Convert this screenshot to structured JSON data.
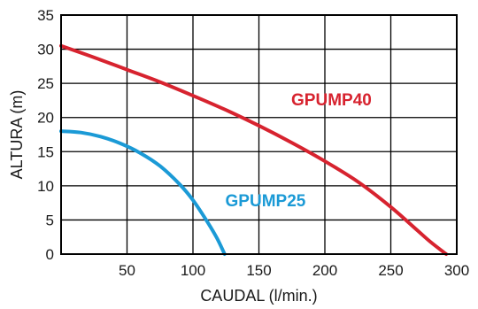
{
  "chart_data": {
    "type": "line",
    "xlabel": "CAUDAL (l/min.)",
    "ylabel": "ALTURA (m)",
    "xlim": [
      0,
      300
    ],
    "ylim": [
      0,
      35
    ],
    "x_ticks": [
      50,
      100,
      150,
      200,
      250,
      300
    ],
    "y_ticks": [
      0,
      5,
      10,
      15,
      20,
      25,
      30,
      35
    ],
    "grid": true,
    "legend": "inline labels",
    "series": [
      {
        "name": "GPUMP40",
        "color": "#d7232f",
        "x": [
          0,
          25,
          50,
          75,
          100,
          125,
          150,
          175,
          200,
          225,
          250,
          270,
          280,
          292
        ],
        "y": [
          30.5,
          28.8,
          27.0,
          25.2,
          23.2,
          21.1,
          18.8,
          16.3,
          13.6,
          10.6,
          6.9,
          3.5,
          1.8,
          0
        ]
      },
      {
        "name": "GPUMP25",
        "color": "#1b9ad6",
        "x": [
          0,
          15,
          30,
          45,
          60,
          75,
          90,
          100,
          110,
          118,
          124
        ],
        "y": [
          18.0,
          17.8,
          17.2,
          16.2,
          14.8,
          12.9,
          10.2,
          7.9,
          5.0,
          2.4,
          0
        ]
      }
    ]
  }
}
